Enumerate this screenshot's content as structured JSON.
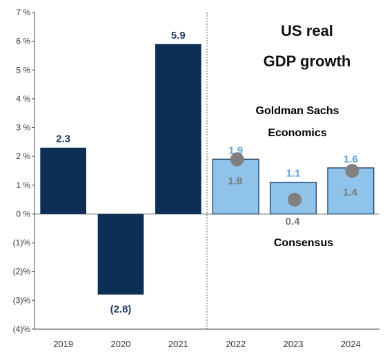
{
  "chart_data": {
    "type": "bar",
    "title_line1": "US real",
    "title_line2": "GDP growth",
    "categories": [
      "2019",
      "2020",
      "2021",
      "2022",
      "2023",
      "2024"
    ],
    "series": [
      {
        "name": "Goldman Sachs Economics",
        "values": [
          2.3,
          -2.8,
          5.9,
          1.9,
          1.1,
          1.6
        ],
        "labels": [
          "2.3",
          "(2.8)",
          "5.9",
          "1.9",
          "1.1",
          "1.6"
        ]
      },
      {
        "name": "Consensus",
        "values": [
          null,
          null,
          null,
          1.8,
          0.4,
          1.4
        ],
        "labels": [
          "",
          "",
          "",
          "1.8",
          "0.4",
          "1.4"
        ]
      }
    ],
    "y_ticks": [
      7,
      6,
      5,
      4,
      3,
      2,
      1,
      0,
      -1,
      -2,
      -3,
      -4
    ],
    "y_tick_labels": [
      "7 %",
      "6 %",
      "5 %",
      "4 %",
      "3 %",
      "2 %",
      "1 %",
      "0 %",
      "(1)%",
      "(2)%",
      "(3)%",
      "(4)%"
    ],
    "ylim": [
      -4,
      7
    ],
    "legend": {
      "gs_line1": "Goldman Sachs",
      "gs_line2": "Economics",
      "consensus": "Consensus"
    },
    "colors": {
      "actual_bar": "#0d2f56",
      "forecast_bar": "#8fc3ea",
      "forecast_bar_border": "#2c4f78",
      "gs_text": "#5ba3d6",
      "consensus_dot": "#808080",
      "consensus_text": "#7a7a7a",
      "actual_label": "#1f3b66"
    },
    "grid": false
  }
}
